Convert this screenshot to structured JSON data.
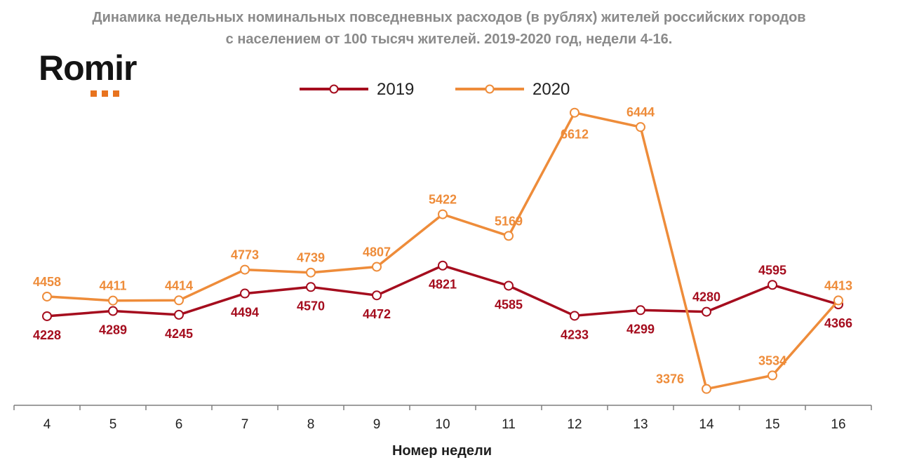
{
  "chart_data": {
    "type": "line",
    "title": "Динамика недельных номинальных повседневных расходов (в рублях) жителей российских городов с населением от 100 тысяч жителей. 2019-2020 год, недели 4-16.",
    "title_lines": [
      "Динамика недельных номинальных повседневных расходов (в рублях) жителей российских городов",
      "с населением от 100 тысяч жителей. 2019-2020 год, недели 4-16."
    ],
    "xlabel": "Номер недели",
    "ylabel": "",
    "x": [
      "4",
      "5",
      "6",
      "7",
      "8",
      "9",
      "10",
      "11",
      "12",
      "13",
      "14",
      "15",
      "16"
    ],
    "ylim": [
      3250,
      6700
    ],
    "grid": false,
    "legend_position": "top-center",
    "series": [
      {
        "name": "2019",
        "color": "#a50d1e",
        "values": [
          4228,
          4289,
          4245,
          4494,
          4570,
          4472,
          4821,
          4585,
          4233,
          4299,
          4280,
          4595,
          4366
        ]
      },
      {
        "name": "2020",
        "color": "#ee8c3a",
        "values": [
          4458,
          4411,
          4414,
          4773,
          4739,
          4807,
          5422,
          5169,
          6612,
          6444,
          3376,
          3534,
          4413
        ]
      }
    ]
  },
  "logo": {
    "text": "Romir",
    "accent_color": "#e8731e"
  }
}
